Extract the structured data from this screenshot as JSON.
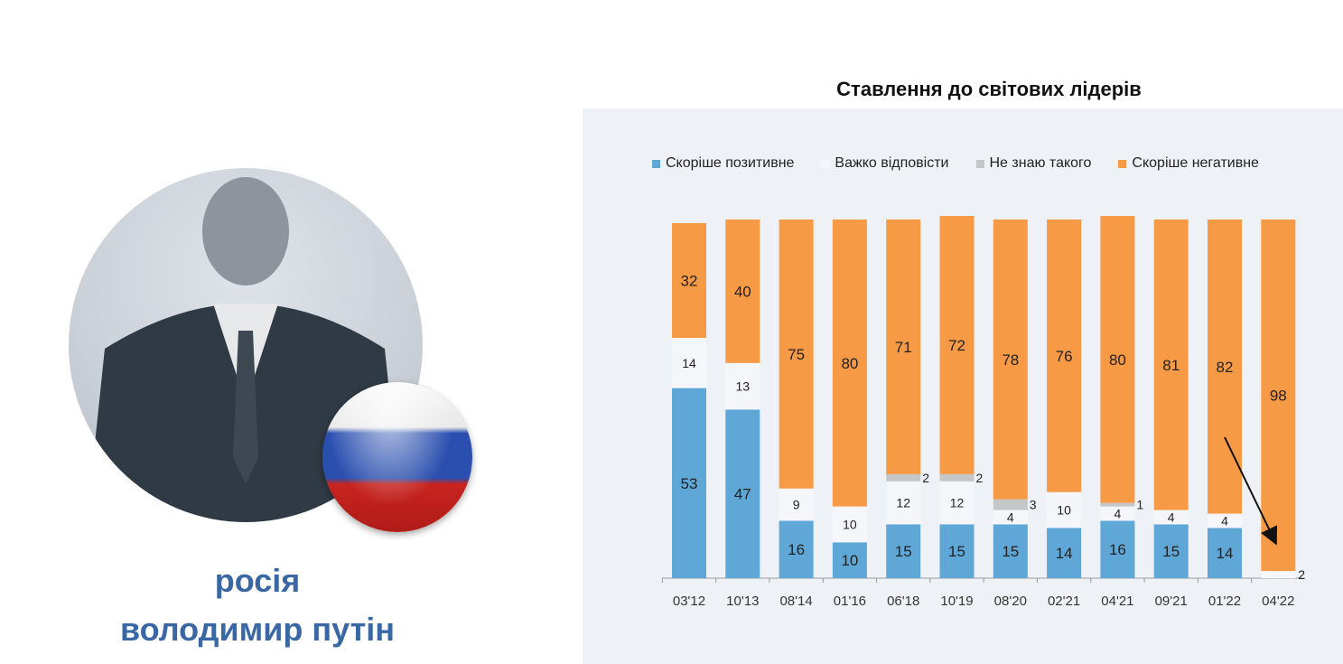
{
  "caption": {
    "country": "росія",
    "name": "володимир путін"
  },
  "chart_data": {
    "type": "bar",
    "stacked": true,
    "title": "Ставлення до світових лідерів",
    "legend_position": "top",
    "categories": [
      "03'12",
      "10'13",
      "08'14",
      "01'16",
      "06'18",
      "10'19",
      "08'20",
      "02'21",
      "04'21",
      "09'21",
      "01'22",
      "04'22"
    ],
    "series": [
      {
        "name": "Скоріше позитивне",
        "color": "#5ea7d6",
        "values": [
          53,
          47,
          16,
          10,
          15,
          15,
          15,
          14,
          16,
          15,
          14,
          0
        ]
      },
      {
        "name": "Важко відповісти",
        "color": "#f4f6f9",
        "values": [
          14,
          13,
          9,
          10,
          12,
          12,
          4,
          10,
          4,
          4,
          4,
          2
        ]
      },
      {
        "name": "Не знаю такого",
        "color": "#c4c6c8",
        "values": [
          0,
          0,
          0,
          0,
          2,
          2,
          3,
          0,
          1,
          0,
          0,
          0
        ]
      },
      {
        "name": "Скоріше негативне",
        "color": "#f79a45",
        "values": [
          32,
          40,
          75,
          80,
          71,
          72,
          78,
          76,
          80,
          81,
          82,
          98
        ]
      }
    ],
    "ylim": [
      0,
      100
    ],
    "grid": false,
    "annotation": "arrow pointing down to 04'22"
  }
}
